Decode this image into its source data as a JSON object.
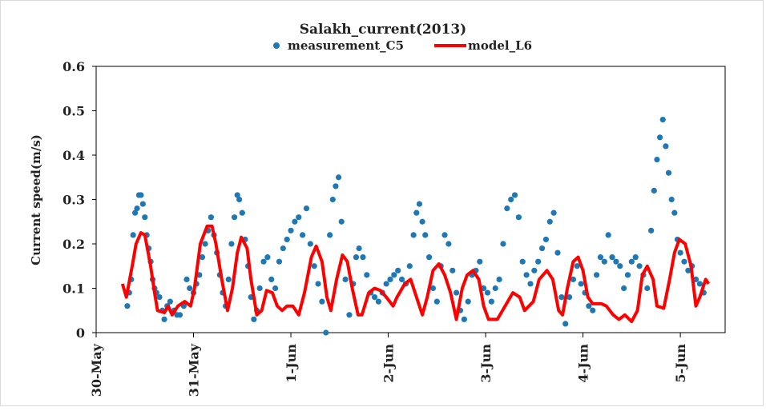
{
  "chart_data": {
    "type": "scatter-line",
    "title": "Salakh_current(2013)",
    "y_label": "Current speed(m/s)",
    "xlim": [
      0,
      6.46
    ],
    "ylim": [
      0,
      0.6
    ],
    "xticks": [
      {
        "value": 0,
        "label": "30-May"
      },
      {
        "value": 1,
        "label": "31-May"
      },
      {
        "value": 2,
        "label": "1-Jun"
      },
      {
        "value": 3,
        "label": "2-Jun"
      },
      {
        "value": 4,
        "label": "3-Jun"
      },
      {
        "value": 5,
        "label": "4-Jun"
      },
      {
        "value": 6,
        "label": "5-Jun"
      }
    ],
    "yticks": [
      0,
      0.1,
      0.2,
      0.3,
      0.4,
      0.5,
      0.6
    ],
    "legend": "top",
    "series": [
      {
        "name": "measurement_C5",
        "color": "#1f77b4",
        "mark": "dot",
        "x": [
          0.32,
          0.34,
          0.36,
          0.38,
          0.4,
          0.42,
          0.44,
          0.46,
          0.48,
          0.5,
          0.52,
          0.54,
          0.56,
          0.58,
          0.6,
          0.62,
          0.65,
          0.68,
          0.7,
          0.73,
          0.76,
          0.8,
          0.83,
          0.86,
          0.9,
          0.93,
          0.96,
          1.0,
          1.03,
          1.06,
          1.09,
          1.12,
          1.15,
          1.18,
          1.21,
          1.24,
          1.27,
          1.3,
          1.33,
          1.36,
          1.39,
          1.42,
          1.45,
          1.47,
          1.5,
          1.53,
          1.56,
          1.59,
          1.62,
          1.65,
          1.68,
          1.72,
          1.76,
          1.8,
          1.84,
          1.88,
          1.92,
          1.96,
          2.0,
          2.04,
          2.08,
          2.12,
          2.16,
          2.2,
          2.24,
          2.28,
          2.32,
          2.36,
          2.4,
          2.43,
          2.46,
          2.49,
          2.52,
          2.56,
          2.6,
          2.64,
          2.67,
          2.7,
          2.74,
          2.78,
          2.82,
          2.86,
          2.9,
          2.94,
          2.98,
          3.02,
          3.06,
          3.1,
          3.14,
          3.18,
          3.22,
          3.26,
          3.29,
          3.32,
          3.35,
          3.38,
          3.42,
          3.46,
          3.5,
          3.54,
          3.58,
          3.62,
          3.66,
          3.7,
          3.74,
          3.78,
          3.82,
          3.86,
          3.9,
          3.94,
          3.98,
          4.02,
          4.06,
          4.1,
          4.14,
          4.18,
          4.22,
          4.26,
          4.3,
          4.34,
          4.38,
          4.42,
          4.46,
          4.5,
          4.54,
          4.58,
          4.62,
          4.66,
          4.7,
          4.74,
          4.78,
          4.82,
          4.86,
          4.9,
          4.94,
          4.98,
          5.02,
          5.06,
          5.1,
          5.14,
          5.18,
          5.22,
          5.26,
          5.3,
          5.34,
          5.38,
          5.42,
          5.46,
          5.5,
          5.54,
          5.58,
          5.62,
          5.66,
          5.7,
          5.73,
          5.76,
          5.79,
          5.82,
          5.85,
          5.88,
          5.91,
          5.94,
          5.97,
          6.0,
          6.04,
          6.08,
          6.12,
          6.16,
          6.2,
          6.24
        ],
        "values": [
          0.06,
          0.09,
          0.12,
          0.22,
          0.27,
          0.28,
          0.31,
          0.31,
          0.29,
          0.26,
          0.22,
          0.19,
          0.16,
          0.12,
          0.1,
          0.09,
          0.08,
          0.05,
          0.03,
          0.06,
          0.07,
          0.05,
          0.04,
          0.04,
          0.06,
          0.12,
          0.1,
          0.09,
          0.11,
          0.13,
          0.17,
          0.2,
          0.23,
          0.26,
          0.22,
          0.18,
          0.13,
          0.09,
          0.06,
          0.12,
          0.2,
          0.26,
          0.31,
          0.3,
          0.27,
          0.21,
          0.15,
          0.08,
          0.03,
          0.05,
          0.1,
          0.16,
          0.17,
          0.12,
          0.1,
          0.16,
          0.19,
          0.21,
          0.23,
          0.25,
          0.26,
          0.22,
          0.28,
          0.2,
          0.15,
          0.11,
          0.07,
          0.0,
          0.22,
          0.3,
          0.33,
          0.35,
          0.25,
          0.12,
          0.04,
          0.11,
          0.17,
          0.19,
          0.17,
          0.13,
          0.09,
          0.08,
          0.07,
          0.09,
          0.11,
          0.12,
          0.13,
          0.14,
          0.12,
          0.11,
          0.15,
          0.22,
          0.27,
          0.29,
          0.25,
          0.22,
          0.17,
          0.1,
          0.07,
          0.15,
          0.22,
          0.2,
          0.14,
          0.09,
          0.05,
          0.03,
          0.07,
          0.13,
          0.14,
          0.16,
          0.1,
          0.09,
          0.07,
          0.1,
          0.12,
          0.2,
          0.28,
          0.3,
          0.31,
          0.26,
          0.16,
          0.13,
          0.11,
          0.14,
          0.16,
          0.19,
          0.21,
          0.25,
          0.27,
          0.18,
          0.08,
          0.02,
          0.08,
          0.12,
          0.15,
          0.11,
          0.09,
          0.06,
          0.05,
          0.13,
          0.17,
          0.16,
          0.22,
          0.17,
          0.16,
          0.15,
          0.1,
          0.13,
          0.16,
          0.17,
          0.15,
          0.13,
          0.1,
          0.23,
          0.32,
          0.39,
          0.44,
          0.48,
          0.42,
          0.36,
          0.3,
          0.27,
          0.21,
          0.18,
          0.16,
          0.14,
          0.15,
          0.12,
          0.11,
          0.09
        ]
      },
      {
        "name": "model_L6",
        "color": "#ff0000",
        "mark": "line",
        "x": [
          0.27,
          0.31,
          0.37,
          0.41,
          0.46,
          0.5,
          0.56,
          0.6,
          0.63,
          0.7,
          0.74,
          0.78,
          0.84,
          0.91,
          0.97,
          1.01,
          1.07,
          1.14,
          1.19,
          1.23,
          1.29,
          1.35,
          1.4,
          1.45,
          1.49,
          1.55,
          1.59,
          1.65,
          1.7,
          1.75,
          1.81,
          1.86,
          1.91,
          1.96,
          2.02,
          2.08,
          2.14,
          2.21,
          2.26,
          2.32,
          2.37,
          2.41,
          2.47,
          2.53,
          2.58,
          2.63,
          2.69,
          2.73,
          2.8,
          2.86,
          2.92,
          2.98,
          3.05,
          3.09,
          3.17,
          3.23,
          3.29,
          3.35,
          3.4,
          3.46,
          3.52,
          3.58,
          3.64,
          3.7,
          3.76,
          3.81,
          3.87,
          3.93,
          3.98,
          4.03,
          4.12,
          4.2,
          4.28,
          4.35,
          4.4,
          4.49,
          4.55,
          4.63,
          4.69,
          4.75,
          4.79,
          4.84,
          4.9,
          4.95,
          5.0,
          5.05,
          5.1,
          5.19,
          5.24,
          5.31,
          5.37,
          5.43,
          5.5,
          5.56,
          5.61,
          5.66,
          5.72,
          5.76,
          5.83,
          5.89,
          5.94,
          5.99,
          6.05,
          6.11,
          6.16,
          6.2,
          6.26,
          6.29
        ],
        "values": [
          0.11,
          0.08,
          0.15,
          0.2,
          0.225,
          0.22,
          0.15,
          0.09,
          0.05,
          0.045,
          0.06,
          0.04,
          0.06,
          0.07,
          0.06,
          0.1,
          0.2,
          0.24,
          0.24,
          0.2,
          0.12,
          0.05,
          0.1,
          0.18,
          0.215,
          0.19,
          0.12,
          0.04,
          0.05,
          0.095,
          0.09,
          0.06,
          0.05,
          0.06,
          0.06,
          0.04,
          0.09,
          0.17,
          0.195,
          0.16,
          0.08,
          0.05,
          0.12,
          0.175,
          0.16,
          0.1,
          0.04,
          0.04,
          0.09,
          0.1,
          0.095,
          0.08,
          0.06,
          0.08,
          0.11,
          0.12,
          0.08,
          0.04,
          0.08,
          0.14,
          0.155,
          0.13,
          0.09,
          0.03,
          0.1,
          0.13,
          0.14,
          0.12,
          0.06,
          0.03,
          0.03,
          0.06,
          0.09,
          0.08,
          0.05,
          0.07,
          0.12,
          0.14,
          0.12,
          0.05,
          0.04,
          0.1,
          0.16,
          0.17,
          0.14,
          0.08,
          0.065,
          0.065,
          0.06,
          0.04,
          0.03,
          0.04,
          0.025,
          0.05,
          0.13,
          0.15,
          0.12,
          0.06,
          0.055,
          0.12,
          0.18,
          0.21,
          0.2,
          0.15,
          0.06,
          0.08,
          0.12,
          0.11
        ]
      }
    ]
  }
}
